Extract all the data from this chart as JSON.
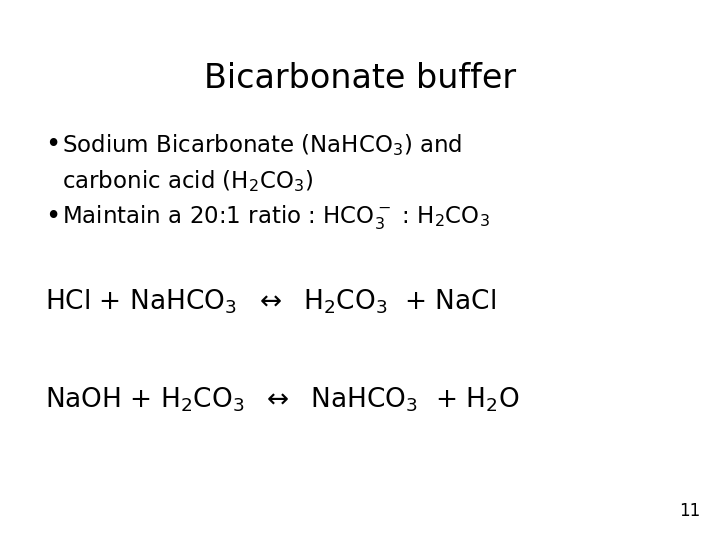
{
  "title": "Bicarbonate buffer",
  "background_color": "#ffffff",
  "text_color": "#000000",
  "title_fontsize": 24,
  "body_fontsize": 16.5,
  "equation_fontsize": 19,
  "page_number": "11",
  "page_number_fontsize": 12
}
